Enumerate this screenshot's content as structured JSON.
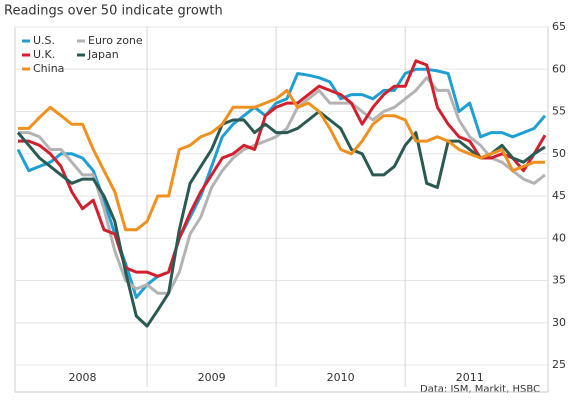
{
  "chart_data": {
    "type": "line",
    "title": "Readings over 50 indicate growth",
    "source": "Data: ISM, Markit, HSBC",
    "categories": [
      null,
      null,
      null,
      null,
      null,
      null,
      "2008",
      null,
      null,
      null,
      null,
      null,
      null,
      null,
      null,
      null,
      null,
      null,
      "2009",
      null,
      null,
      null,
      null,
      null,
      null,
      null,
      null,
      null,
      null,
      null,
      "2010",
      null,
      null,
      null,
      null,
      null,
      null,
      null,
      null,
      null,
      null,
      null,
      "2011",
      null,
      null,
      null,
      null,
      null,
      null,
      null
    ],
    "ylim": [
      25,
      65
    ],
    "yticks": [
      25,
      30,
      35,
      40,
      45,
      50,
      55,
      60,
      65
    ],
    "grid": true,
    "legend": "upper-left",
    "series": [
      {
        "name": "U.S.",
        "color": "#1f9fd2",
        "values": [
          50.5,
          48,
          48.5,
          49,
          50,
          50,
          49.5,
          48,
          44.5,
          40.5,
          37,
          33,
          34.5,
          35.5,
          36,
          40,
          42.5,
          45,
          48.5,
          52,
          53.5,
          54.5,
          55.5,
          54.5,
          56,
          56.5,
          59.5,
          59.3,
          59,
          58.5,
          56.5,
          57,
          57,
          56.5,
          57.5,
          57.5,
          59.5,
          60,
          60,
          59.8,
          59.5,
          55,
          56,
          52,
          52.5,
          52.5,
          52,
          52.5,
          53,
          54.5
        ]
      },
      {
        "name": "Euro zone",
        "color": "#b3b3b3",
        "values": [
          52.5,
          52.5,
          52,
          50.5,
          50.5,
          49,
          47.5,
          47.5,
          43.5,
          38.5,
          35,
          34,
          34.5,
          33.5,
          33.5,
          36,
          40.5,
          42.5,
          46,
          48,
          49.5,
          50.5,
          51,
          51.5,
          52,
          53,
          55.5,
          56.5,
          57.5,
          56,
          56,
          56,
          55,
          54,
          55,
          55.5,
          56.5,
          57.5,
          59,
          57.5,
          57.5,
          54,
          52,
          51,
          49.5,
          49,
          48,
          47,
          46.5,
          47.5
        ]
      },
      {
        "name": "U.K.",
        "color": "#d2202f",
        "values": [
          51.5,
          51.5,
          51,
          50,
          48.5,
          45.5,
          43.5,
          44.5,
          41,
          40.5,
          36.5,
          36,
          36,
          35.5,
          36,
          40,
          43,
          45.5,
          47.5,
          49.5,
          50,
          51,
          50.5,
          54.5,
          55.5,
          56,
          56,
          57,
          58,
          57.5,
          57,
          56,
          53.5,
          55.5,
          57,
          58,
          58,
          61,
          60.5,
          55.5,
          53.5,
          52,
          51.5,
          49.5,
          49.5,
          50,
          49.5,
          48,
          50,
          52.2
        ]
      },
      {
        "name": "Japan",
        "color": "#2b5a52",
        "values": [
          52.5,
          51,
          49.5,
          48.5,
          47.5,
          46.5,
          47,
          47,
          45,
          42,
          36,
          30.8,
          29.6,
          31.5,
          33.5,
          41,
          46.5,
          48.5,
          50.5,
          53.5,
          54,
          54,
          52.5,
          53.5,
          52.5,
          52.5,
          53,
          54,
          55,
          54,
          53,
          50.5,
          50,
          47.5,
          47.5,
          48.5,
          51,
          52.5,
          46.5,
          46,
          51.5,
          51.5,
          50.5,
          49.5,
          50,
          51,
          49.5,
          49,
          50,
          50.8
        ]
      },
      {
        "name": "China",
        "color": "#f0901e",
        "values": [
          53,
          53,
          54.3,
          55.5,
          54.5,
          53.5,
          53.5,
          50.5,
          48,
          45.5,
          41,
          41,
          42,
          45,
          45,
          50.5,
          51,
          52,
          52.5,
          53.5,
          55.5,
          55.5,
          55.5,
          56,
          56.5,
          57.5,
          55.5,
          56,
          55,
          53,
          50.5,
          50,
          51.5,
          53.5,
          54.5,
          54.5,
          54,
          51.5,
          51.5,
          52,
          51.5,
          50.5,
          50,
          49.5,
          50,
          50.5,
          48,
          48.5,
          49,
          49
        ]
      }
    ]
  }
}
